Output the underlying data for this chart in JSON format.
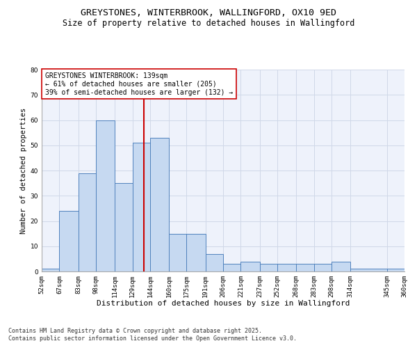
{
  "title1": "GREYSTONES, WINTERBROOK, WALLINGFORD, OX10 9ED",
  "title2": "Size of property relative to detached houses in Wallingford",
  "xlabel": "Distribution of detached houses by size in Wallingford",
  "ylabel": "Number of detached properties",
  "bin_edges": [
    52,
    67,
    83,
    98,
    114,
    129,
    144,
    160,
    175,
    191,
    206,
    221,
    237,
    252,
    268,
    283,
    298,
    314,
    345,
    360
  ],
  "bar_heights": [
    1,
    24,
    39,
    60,
    35,
    51,
    53,
    15,
    15,
    7,
    3,
    4,
    3,
    3,
    3,
    3,
    4,
    1,
    1
  ],
  "bar_color": "#c6d9f1",
  "bar_edge_color": "#4f81bd",
  "grid_color": "#d0d8e8",
  "background_color": "#eef2fb",
  "vline_x": 139,
  "vline_color": "#cc0000",
  "annotation_box_text": "GREYSTONES WINTERBROOK: 139sqm\n← 61% of detached houses are smaller (205)\n39% of semi-detached houses are larger (132) →",
  "annotation_box_color": "#cc0000",
  "ylim": [
    0,
    80
  ],
  "tick_labels": [
    "52sqm",
    "67sqm",
    "83sqm",
    "98sqm",
    "114sqm",
    "129sqm",
    "144sqm",
    "160sqm",
    "175sqm",
    "191sqm",
    "206sqm",
    "221sqm",
    "237sqm",
    "252sqm",
    "268sqm",
    "283sqm",
    "298sqm",
    "314sqm",
    "345sqm",
    "360sqm"
  ],
  "footnote1": "Contains HM Land Registry data © Crown copyright and database right 2025.",
  "footnote2": "Contains public sector information licensed under the Open Government Licence v3.0.",
  "title1_fontsize": 9.5,
  "title2_fontsize": 8.5,
  "xlabel_fontsize": 8,
  "ylabel_fontsize": 7.5,
  "tick_fontsize": 6.5,
  "annotation_fontsize": 7,
  "footnote_fontsize": 6
}
